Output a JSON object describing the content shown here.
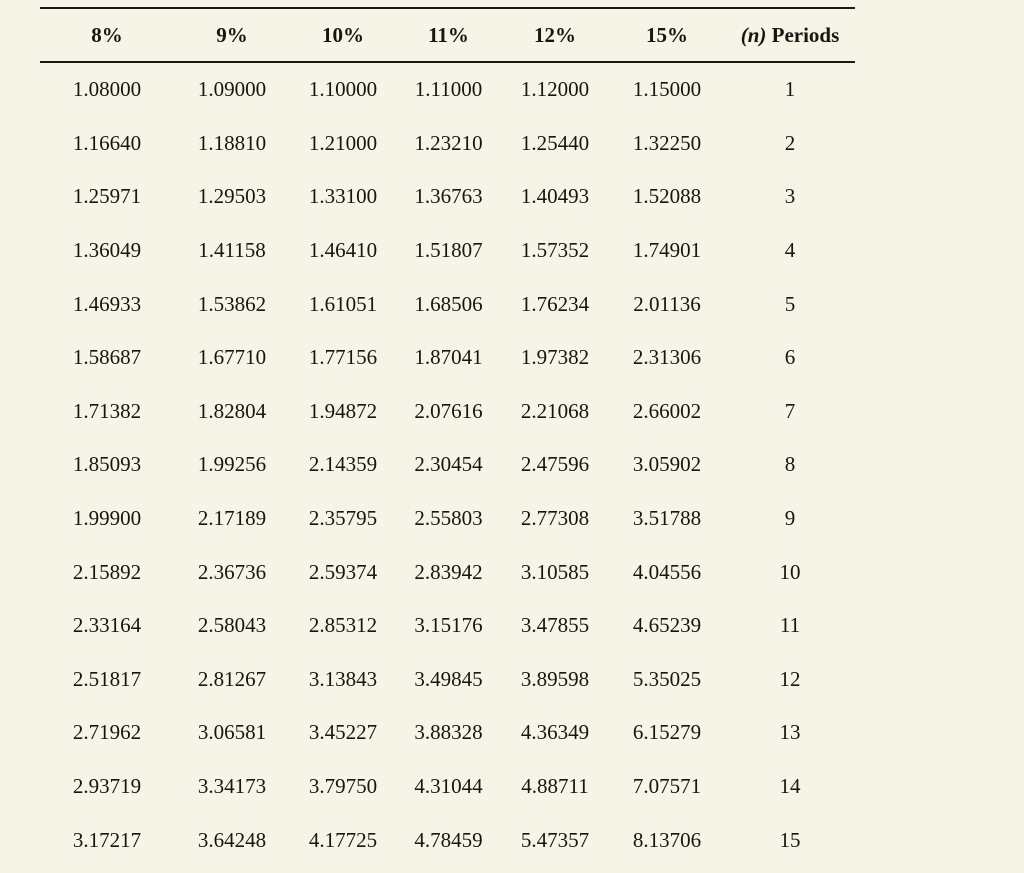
{
  "colors": {
    "background": "#f5f4e6",
    "text": "#171512",
    "rule": "#1c1a17"
  },
  "table": {
    "rate_headers": [
      "8%",
      "9%",
      "10%",
      "11%",
      "12%",
      "15%"
    ],
    "periods_header": {
      "n": "(n)",
      "label": "Periods"
    },
    "rows": [
      {
        "values": [
          "1.08000",
          "1.09000",
          "1.10000",
          "1.11000",
          "1.12000",
          "1.15000"
        ],
        "period": "1"
      },
      {
        "values": [
          "1.16640",
          "1.18810",
          "1.21000",
          "1.23210",
          "1.25440",
          "1.32250"
        ],
        "period": "2"
      },
      {
        "values": [
          "1.25971",
          "1.29503",
          "1.33100",
          "1.36763",
          "1.40493",
          "1.52088"
        ],
        "period": "3"
      },
      {
        "values": [
          "1.36049",
          "1.41158",
          "1.46410",
          "1.51807",
          "1.57352",
          "1.74901"
        ],
        "period": "4"
      },
      {
        "values": [
          "1.46933",
          "1.53862",
          "1.61051",
          "1.68506",
          "1.76234",
          "2.01136"
        ],
        "period": "5"
      },
      {
        "values": [
          "1.58687",
          "1.67710",
          "1.77156",
          "1.87041",
          "1.97382",
          "2.31306"
        ],
        "period": "6"
      },
      {
        "values": [
          "1.71382",
          "1.82804",
          "1.94872",
          "2.07616",
          "2.21068",
          "2.66002"
        ],
        "period": "7"
      },
      {
        "values": [
          "1.85093",
          "1.99256",
          "2.14359",
          "2.30454",
          "2.47596",
          "3.05902"
        ],
        "period": "8"
      },
      {
        "values": [
          "1.99900",
          "2.17189",
          "2.35795",
          "2.55803",
          "2.77308",
          "3.51788"
        ],
        "period": "9"
      },
      {
        "values": [
          "2.15892",
          "2.36736",
          "2.59374",
          "2.83942",
          "3.10585",
          "4.04556"
        ],
        "period": "10"
      },
      {
        "values": [
          "2.33164",
          "2.58043",
          "2.85312",
          "3.15176",
          "3.47855",
          "4.65239"
        ],
        "period": "11"
      },
      {
        "values": [
          "2.51817",
          "2.81267",
          "3.13843",
          "3.49845",
          "3.89598",
          "5.35025"
        ],
        "period": "12"
      },
      {
        "values": [
          "2.71962",
          "3.06581",
          "3.45227",
          "3.88328",
          "4.36349",
          "6.15279"
        ],
        "period": "13"
      },
      {
        "values": [
          "2.93719",
          "3.34173",
          "3.79750",
          "4.31044",
          "4.88711",
          "7.07571"
        ],
        "period": "14"
      },
      {
        "values": [
          "3.17217",
          "3.64248",
          "4.17725",
          "4.78459",
          "5.47357",
          "8.13706"
        ],
        "period": "15"
      }
    ]
  }
}
